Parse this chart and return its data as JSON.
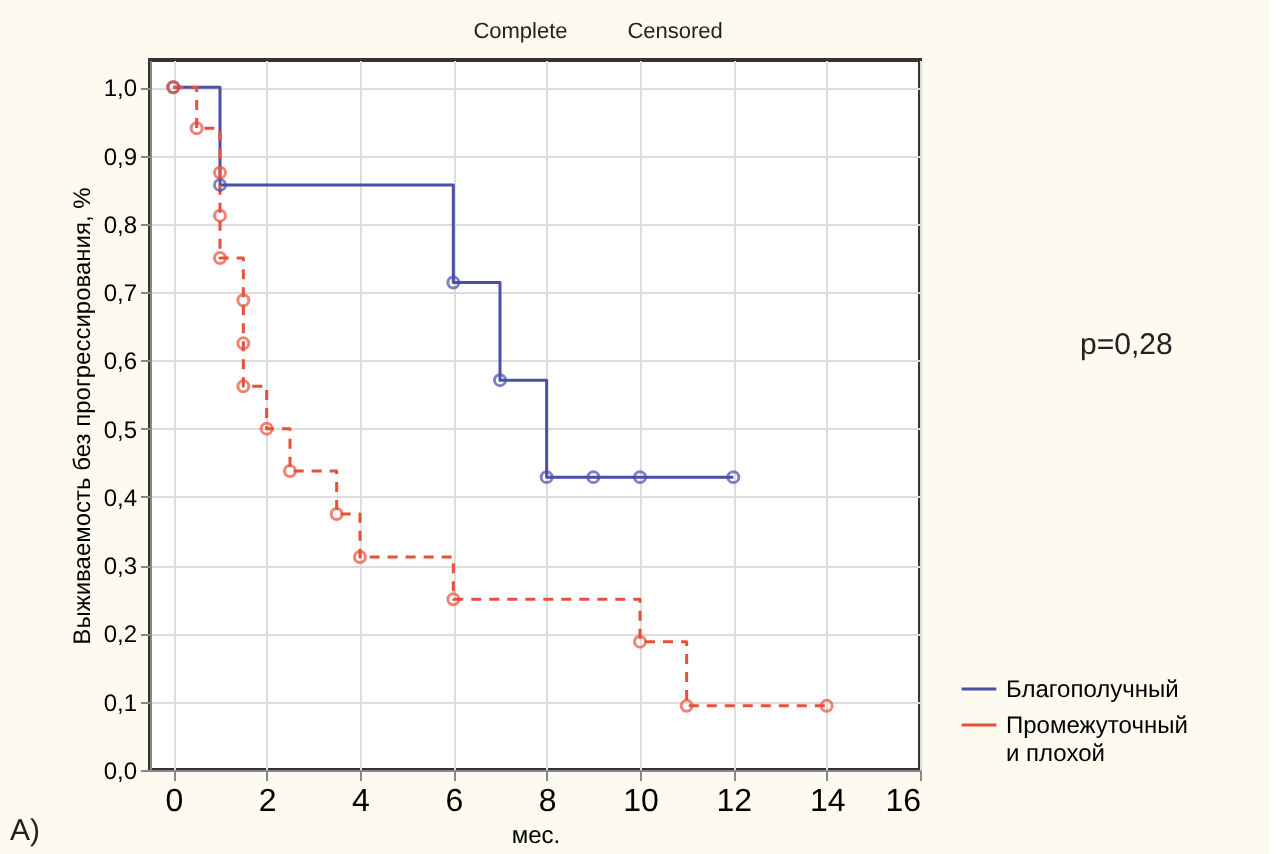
{
  "chart_data": {
    "type": "step",
    "xlabel": "мес.",
    "ylabel": "Выживаемость без прогрессирования, %",
    "xlim": [
      -0.5,
      16
    ],
    "xticks": [
      0,
      2,
      4,
      6,
      8,
      10,
      12,
      14,
      16
    ],
    "ylim": [
      0,
      1.04
    ],
    "yticks": [
      {
        "value": 0,
        "label": "0,0"
      },
      {
        "value": 0.1,
        "label": "0,1"
      },
      {
        "value": 0.2,
        "label": "0,2"
      },
      {
        "value": 0.3,
        "label": "0,3"
      },
      {
        "value": 0.4,
        "label": "0,4"
      },
      {
        "value": 0.5,
        "label": "0,5"
      },
      {
        "value": 0.6,
        "label": "0,6"
      },
      {
        "value": 0.7,
        "label": "0,7"
      },
      {
        "value": 0.8,
        "label": "0,8"
      },
      {
        "value": 0.9,
        "label": "0,9"
      },
      {
        "value": 1,
        "label": "1,0"
      }
    ],
    "grid": true,
    "legend": "bottom right",
    "marker": "circle",
    "series": [
      {
        "name": "Благополучный",
        "color": "#4a4fa8",
        "line_style": "solid",
        "x": [
          0,
          1,
          6,
          7,
          8,
          9,
          10,
          12
        ],
        "values": [
          1.0,
          0.857,
          0.714,
          0.571,
          0.429,
          0.429,
          0.429,
          0.429
        ]
      },
      {
        "name": "Промежуточный и плохой",
        "color": "#e8503a",
        "line_style": "dashed",
        "x": [
          0,
          0.5,
          1,
          1,
          1,
          1.5,
          1.5,
          1.5,
          2,
          2.5,
          3.5,
          4,
          6,
          10,
          11,
          14
        ],
        "values": [
          1.0,
          0.94,
          0.875,
          0.812,
          0.75,
          0.688,
          0.625,
          0.562,
          0.5,
          0.438,
          0.375,
          0.312,
          0.25,
          0.188,
          0.094,
          0.094
        ]
      }
    ],
    "annotations": [
      "Complete",
      "Censored",
      "p=0,28",
      "A)"
    ]
  }
}
